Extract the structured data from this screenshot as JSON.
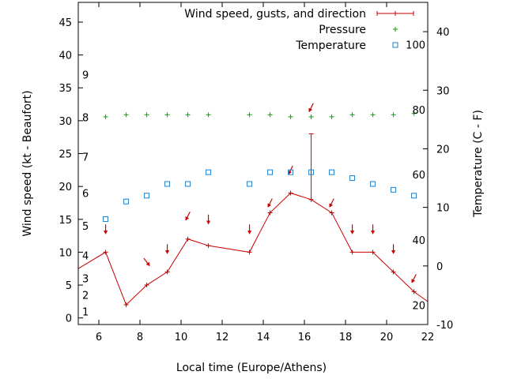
{
  "chart_data": {
    "type": "line",
    "xlabel": "Local time (Europe/Athens)",
    "ylabel_left": "Wind speed (kt - Beaufort)",
    "ylabel_right": "Temperature (C - F)",
    "xlim": [
      5,
      22
    ],
    "ylim_left": [
      -1,
      48
    ],
    "ylim_right": [
      -10,
      45
    ],
    "x_ticks": [
      6,
      8,
      10,
      12,
      14,
      16,
      18,
      20,
      22
    ],
    "y_ticks_left": [
      0,
      5,
      10,
      15,
      20,
      25,
      30,
      35,
      40,
      45
    ],
    "y_ticks_right": [
      -10,
      0,
      10,
      20,
      30,
      40
    ],
    "beaufort_labels": [
      {
        "label": "1",
        "kt": 1
      },
      {
        "label": "2",
        "kt": 3.5
      },
      {
        "label": "3",
        "kt": 6
      },
      {
        "label": "4",
        "kt": 9.5
      },
      {
        "label": "5",
        "kt": 14
      },
      {
        "label": "6",
        "kt": 19
      },
      {
        "label": "7",
        "kt": 24.5
      },
      {
        "label": "8",
        "kt": 30.5
      },
      {
        "label": "9",
        "kt": 37
      }
    ],
    "fahrenheit_labels": [
      {
        "label": "20",
        "celsius": -6.7
      },
      {
        "label": "40",
        "celsius": 4.4
      },
      {
        "label": "60",
        "celsius": 15.6
      },
      {
        "label": "80",
        "celsius": 26.7
      },
      {
        "label": "100",
        "celsius": 37.8
      }
    ],
    "legend": {
      "placement": "top-right"
    },
    "series": [
      {
        "name": "Wind speed, gusts, and direction",
        "color": "#cc0000",
        "x": [
          5,
          6.33,
          7.33,
          8.33,
          9.33,
          10.33,
          11.33,
          13.33,
          14.33,
          15.33,
          16.33,
          17.33,
          18.33,
          19.33,
          20.33,
          21.33,
          22
        ],
        "values": [
          7.5,
          10,
          2,
          5,
          7,
          12,
          11,
          10,
          16,
          19,
          18,
          16,
          10,
          10,
          7,
          4,
          2.5
        ],
        "gust": {
          "x": 16.33,
          "low": 18,
          "high": 28
        },
        "direction_arrows": [
          {
            "x": 6.33,
            "at": 13.5,
            "dir": "down"
          },
          {
            "x": 8.33,
            "at": 8.5,
            "dir": "down-right"
          },
          {
            "x": 9.33,
            "at": 10.5,
            "dir": "down"
          },
          {
            "x": 10.33,
            "at": 15.5,
            "dir": "down-left"
          },
          {
            "x": 11.33,
            "at": 15,
            "dir": "down"
          },
          {
            "x": 13.33,
            "at": 13.5,
            "dir": "down"
          },
          {
            "x": 14.33,
            "at": 17.5,
            "dir": "down-left"
          },
          {
            "x": 15.33,
            "at": 22.5,
            "dir": "down-left"
          },
          {
            "x": 16.33,
            "at": 32,
            "dir": "down-left"
          },
          {
            "x": 17.33,
            "at": 17.5,
            "dir": "down-left"
          },
          {
            "x": 18.33,
            "at": 13.5,
            "dir": "down"
          },
          {
            "x": 19.33,
            "at": 13.5,
            "dir": "down"
          },
          {
            "x": 20.33,
            "at": 10.5,
            "dir": "down"
          },
          {
            "x": 21.33,
            "at": 6,
            "dir": "down-left"
          }
        ]
      },
      {
        "name": "Pressure",
        "color": "#00aa00",
        "marker": "plus",
        "x": [
          6.33,
          7.33,
          8.33,
          9.33,
          10.33,
          11.33,
          13.33,
          14.33,
          15.33,
          16.33,
          17.33,
          18.33,
          19.33,
          20.33,
          21.33
        ],
        "values_left_scale": [
          30.6,
          30.9,
          30.9,
          30.9,
          30.9,
          30.9,
          30.9,
          30.9,
          30.6,
          30.6,
          30.6,
          30.9,
          30.9,
          30.9,
          31.1
        ]
      },
      {
        "name": "Temperature",
        "color": "#1e7fc8",
        "marker": "square",
        "x": [
          6.33,
          7.33,
          8.33,
          9.33,
          10.33,
          11.33,
          13.33,
          14.33,
          15.33,
          16.33,
          17.33,
          18.33,
          19.33,
          20.33,
          21.33
        ],
        "values": [
          8,
          11,
          12,
          14,
          14,
          16,
          14,
          16,
          16,
          16,
          16,
          15,
          14,
          13,
          12
        ]
      }
    ]
  }
}
